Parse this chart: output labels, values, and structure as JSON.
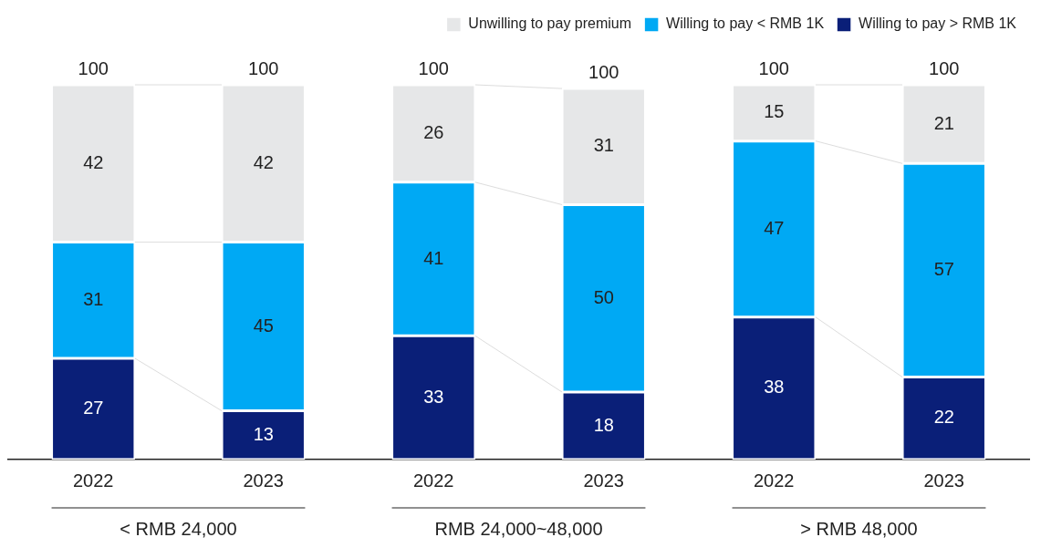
{
  "chart_data": {
    "type": "bar",
    "stacked": true,
    "categories": [
      "2022",
      "2023",
      "2022",
      "2023",
      "2022",
      "2023"
    ],
    "series": [
      {
        "name": "Willing to pay > RMB 1K",
        "color": "#0a1f78",
        "values": [
          27,
          13,
          33,
          18,
          38,
          22
        ]
      },
      {
        "name": "Willing to pay < RMB 1K",
        "color": "#00a9f4",
        "values": [
          31,
          45,
          41,
          50,
          47,
          57
        ]
      },
      {
        "name": "Unwilling to pay premium",
        "color": "#e6e7e8",
        "values": [
          42,
          42,
          26,
          31,
          15,
          21
        ]
      }
    ],
    "totals": [
      "100",
      "100",
      "100",
      "100",
      "100",
      "100"
    ],
    "ylim": [
      0,
      100
    ],
    "tick_labels": "x",
    "grid": false,
    "legend": "top right",
    "data_labels": true,
    "annotations": [
      "< RMB 24,000",
      "RMB 24,000~48,000",
      "> RMB 48,000"
    ]
  }
}
